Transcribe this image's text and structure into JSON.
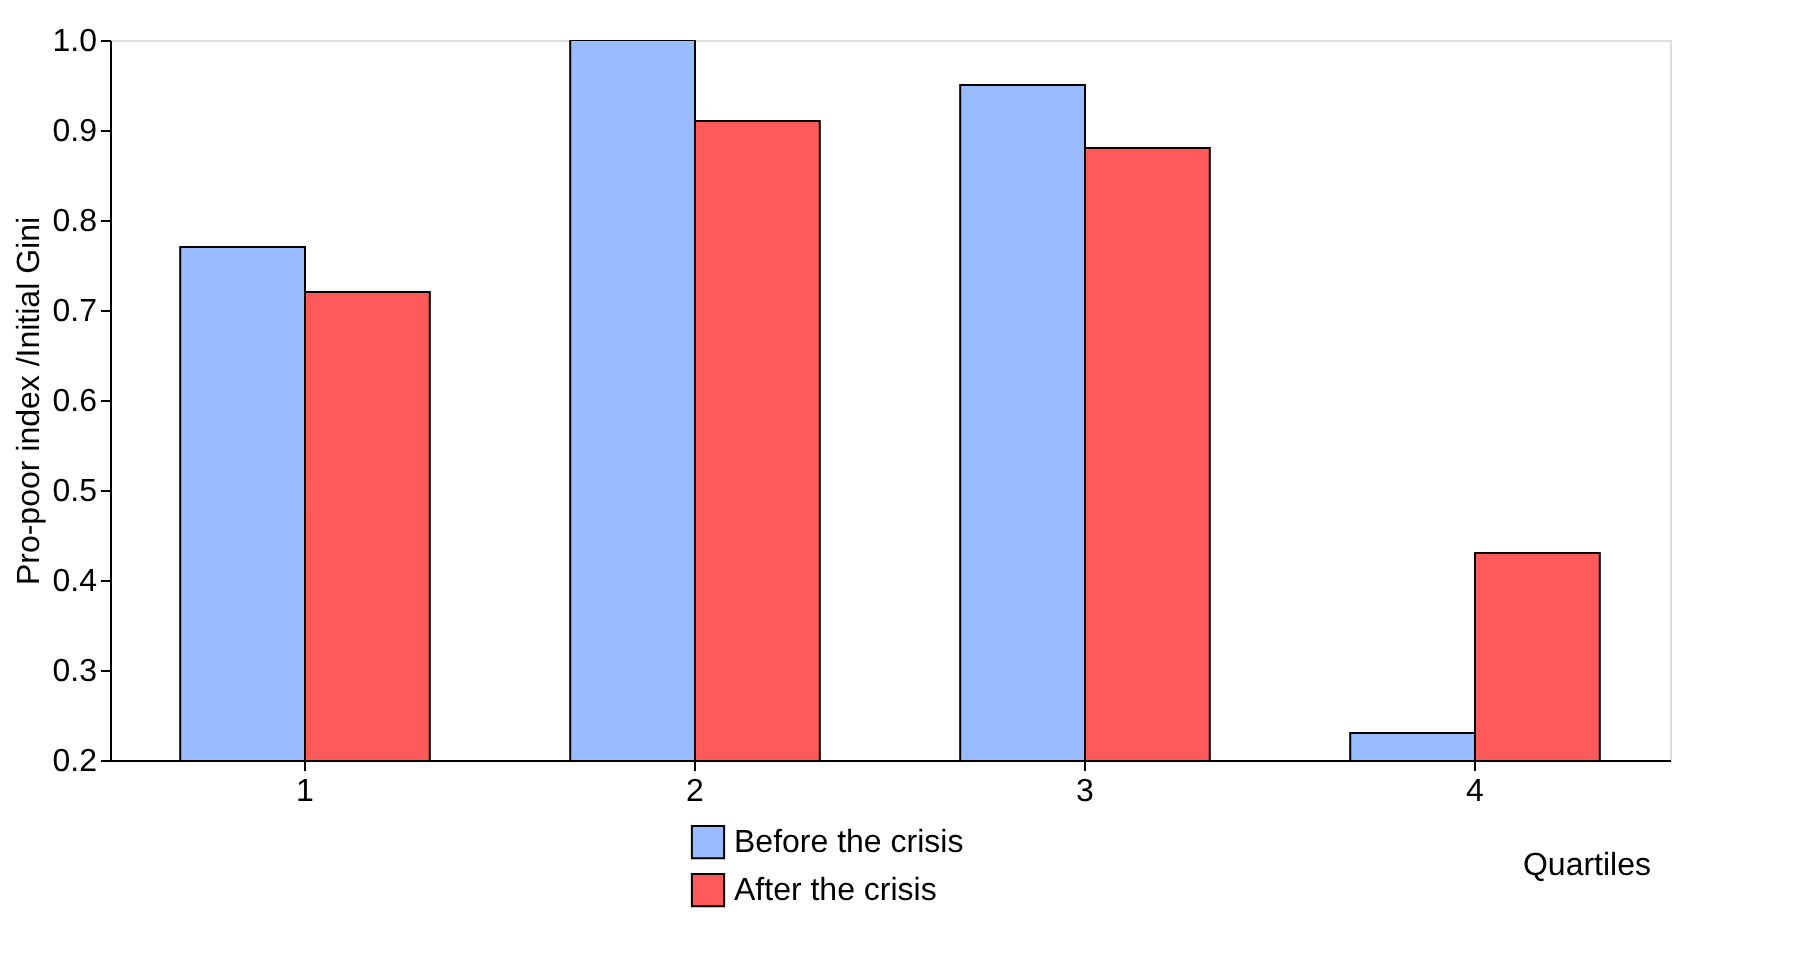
{
  "chart_data": {
    "type": "bar",
    "xlabel": "Quartiles",
    "ylabel": "Pro-poor index /Initial Gini",
    "categories": [
      "1",
      "2",
      "3",
      "4"
    ],
    "series": [
      {
        "name": "Before the crisis",
        "color": "#99bbff",
        "values": [
          0.77,
          1.0,
          0.95,
          0.23
        ]
      },
      {
        "name": "After the crisis",
        "color": "#ff5a5a",
        "values": [
          0.72,
          0.91,
          0.88,
          0.43
        ]
      }
    ],
    "ylim": [
      0.2,
      1.0
    ],
    "yticks": [
      0.2,
      0.3,
      0.4,
      0.5,
      0.6,
      0.7,
      0.8,
      0.9,
      {
        "value": 1.0,
        "label": "1.0"
      }
    ],
    "grid": false,
    "legend": "bottom"
  }
}
